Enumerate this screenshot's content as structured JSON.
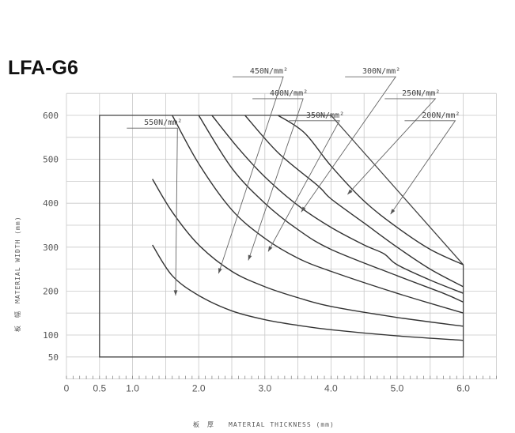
{
  "chart_data": {
    "type": "line",
    "title": "LFA-G6",
    "xlabel": "板　厚　　MATERIAL THICKNESS (mm)",
    "ylabel": "板　幅　MATERIAL WIDTH (mm)",
    "xlim": [
      0,
      6.5
    ],
    "ylim": [
      0,
      650
    ],
    "grid": true,
    "x_ticks": [
      {
        "value": 0,
        "label": "0"
      },
      {
        "value": 0.5,
        "label": "0.5"
      },
      {
        "value": 1.0,
        "label": "1.0"
      },
      {
        "value": 2.0,
        "label": "2.0"
      },
      {
        "value": 3.0,
        "label": "3.0"
      },
      {
        "value": 4.0,
        "label": "4.0"
      },
      {
        "value": 5.0,
        "label": "5.0"
      },
      {
        "value": 6.0,
        "label": "6.0"
      }
    ],
    "y_ticks": [
      {
        "value": 50,
        "label": "50"
      },
      {
        "value": 100,
        "label": "100"
      },
      {
        "value": 200,
        "label": "200"
      },
      {
        "value": 300,
        "label": "300"
      },
      {
        "value": 400,
        "label": "400"
      },
      {
        "value": 500,
        "label": "500"
      },
      {
        "value": 600,
        "label": "600"
      }
    ],
    "envelope": {
      "x": [
        0.5,
        0.5,
        4.0,
        6.0,
        6.0
      ],
      "y": [
        50,
        600,
        600,
        260,
        50
      ]
    },
    "series": [
      {
        "name": "550N/mm²",
        "x": [
          1.3,
          1.6,
          2.0,
          2.5,
          3.0,
          3.5,
          4.0,
          5.0,
          6.0
        ],
        "y": [
          305,
          235,
          190,
          155,
          135,
          122,
          112,
          98,
          88
        ],
        "callout": {
          "label_at": [
            1.75,
            578
          ],
          "point": [
            1.65,
            190
          ]
        }
      },
      {
        "name": "450N/mm²",
        "x": [
          1.3,
          1.6,
          2.0,
          2.5,
          3.0,
          3.5,
          4.0,
          5.0,
          6.0
        ],
        "y": [
          455,
          380,
          305,
          245,
          210,
          185,
          165,
          140,
          120
        ],
        "callout": {
          "label_at": [
            3.35,
            695
          ],
          "point": [
            2.3,
            240
          ]
        }
      },
      {
        "name": "400N/mm²",
        "x": [
          1.6,
          2.0,
          2.5,
          3.0,
          3.5,
          4.0,
          5.0,
          6.0
        ],
        "y": [
          600,
          490,
          385,
          320,
          275,
          245,
          195,
          150
        ],
        "callout": {
          "label_at": [
            3.65,
            645
          ],
          "point": [
            2.75,
            270
          ]
        }
      },
      {
        "name": "350N/mm²",
        "x": [
          2.0,
          2.5,
          3.0,
          3.5,
          4.0,
          5.0,
          5.7,
          6.0
        ],
        "y": [
          600,
          480,
          400,
          340,
          295,
          235,
          195,
          175
        ],
        "callout": {
          "label_at": [
            4.2,
            595
          ],
          "point": [
            3.05,
            290
          ]
        }
      },
      {
        "name": "300N/mm²",
        "x": [
          2.2,
          2.6,
          3.0,
          3.5,
          4.0,
          4.5,
          4.8,
          5.0,
          5.5,
          6.0
        ],
        "y": [
          600,
          525,
          460,
          395,
          345,
          305,
          285,
          260,
          225,
          195
        ],
        "callout": {
          "label_at": [
            5.05,
            695
          ],
          "point": [
            3.55,
            380
          ]
        }
      },
      {
        "name": "250N/mm²",
        "x": [
          2.7,
          3.2,
          3.8,
          4.0,
          4.5,
          5.0,
          5.5,
          6.0
        ],
        "y": [
          600,
          515,
          440,
          410,
          355,
          300,
          250,
          210
        ],
        "callout": {
          "label_at": [
            5.65,
            645
          ],
          "point": [
            4.25,
            420
          ]
        }
      },
      {
        "name": "200N/mm²",
        "x": [
          3.2,
          3.6,
          4.0,
          4.5,
          5.0,
          5.5,
          6.0
        ],
        "y": [
          600,
          560,
          485,
          405,
          345,
          295,
          260
        ],
        "callout": {
          "label_at": [
            5.95,
            595
          ],
          "point": [
            4.9,
            375
          ]
        }
      }
    ]
  }
}
